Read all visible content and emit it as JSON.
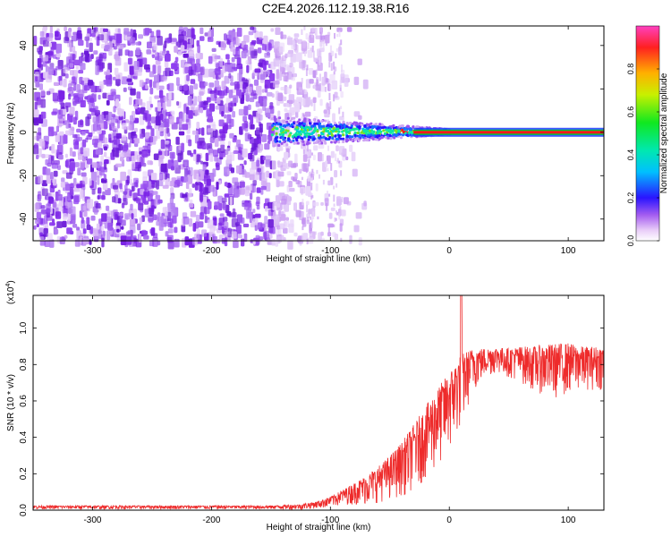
{
  "title": "C2E4.2026.112.19.38.R16",
  "colors": {
    "snr_line": "#ee2b2b",
    "axis": "#000000",
    "noise_purple": "#7a22e6",
    "noise_light": "#cfa6f4",
    "carrier_red": "#ff1a1a",
    "carrier_green": "#00c23a"
  },
  "chart_data": [
    {
      "type": "heatmap",
      "name": "spectrogram",
      "xlabel": "Height of straight line (km)",
      "ylabel": "Frequency (Hz)",
      "xlim": [
        -350,
        130
      ],
      "ylim": [
        -50,
        49
      ],
      "xticks": [
        -300,
        -200,
        -100,
        0,
        100
      ],
      "xtick_labels": [
        "-300",
        "-200",
        "-100",
        "0",
        "100"
      ],
      "yticks": [
        -40,
        -20,
        0,
        20,
        40
      ],
      "ytick_labels": [
        "-40",
        "-20",
        "0",
        "20",
        "40"
      ],
      "colorbar": {
        "label": "Normalized spectral amplitude",
        "range": [
          0.0,
          1.0
        ],
        "ticks": [
          0.0,
          0.2,
          0.4,
          0.6,
          0.8
        ],
        "tick_labels": [
          "0.0",
          "0.2",
          "0.4",
          "0.6",
          "0.8"
        ]
      },
      "features": {
        "broadband_noise_x_range": [
          -350,
          -100
        ],
        "carrier_onset_x": -150,
        "carrier_freq_hz": 0,
        "stable_carrier_from_x": 0
      }
    },
    {
      "type": "line",
      "name": "snr",
      "xlabel": "Height of straight line (km)",
      "ylabel": "SNR (10 * v/v)",
      "y_multiplier": "(x10",
      "y_multiplier_exp": "4",
      "y_multiplier_close": ")",
      "xlim": [
        -350,
        130
      ],
      "ylim": [
        0.0,
        1.18
      ],
      "xticks": [
        -300,
        -200,
        -100,
        0,
        100
      ],
      "xtick_labels": [
        "-300",
        "-200",
        "-100",
        "0",
        "100"
      ],
      "yticks": [
        0.0,
        0.2,
        0.4,
        0.6,
        0.8,
        1.0
      ],
      "ytick_labels": [
        "0.0",
        "0.2",
        "0.4",
        "0.6",
        "0.8",
        "1.0"
      ],
      "series": [
        {
          "name": "SNR",
          "x": [
            -350,
            -250,
            -150,
            -125,
            -110,
            -100,
            -90,
            -80,
            -70,
            -60,
            -50,
            -40,
            -30,
            -20,
            -10,
            0,
            10,
            20,
            30,
            40,
            50,
            60,
            70,
            80,
            90,
            100,
            110,
            120,
            130
          ],
          "y": [
            0.02,
            0.02,
            0.02,
            0.025,
            0.04,
            0.06,
            0.09,
            0.12,
            0.15,
            0.19,
            0.24,
            0.3,
            0.38,
            0.47,
            0.56,
            0.65,
            0.76,
            0.83,
            0.85,
            0.86,
            0.85,
            0.85,
            0.84,
            0.84,
            0.84,
            0.85,
            0.84,
            0.84,
            0.84
          ],
          "spread": [
            0.01,
            0.01,
            0.01,
            0.015,
            0.02,
            0.03,
            0.04,
            0.06,
            0.08,
            0.1,
            0.12,
            0.15,
            0.18,
            0.2,
            0.22,
            0.22,
            0.2,
            0.12,
            0.08,
            0.07,
            0.08,
            0.1,
            0.12,
            0.14,
            0.15,
            0.14,
            0.12,
            0.12,
            0.12
          ],
          "peak": {
            "x": 10,
            "y": 1.18
          }
        }
      ]
    }
  ]
}
